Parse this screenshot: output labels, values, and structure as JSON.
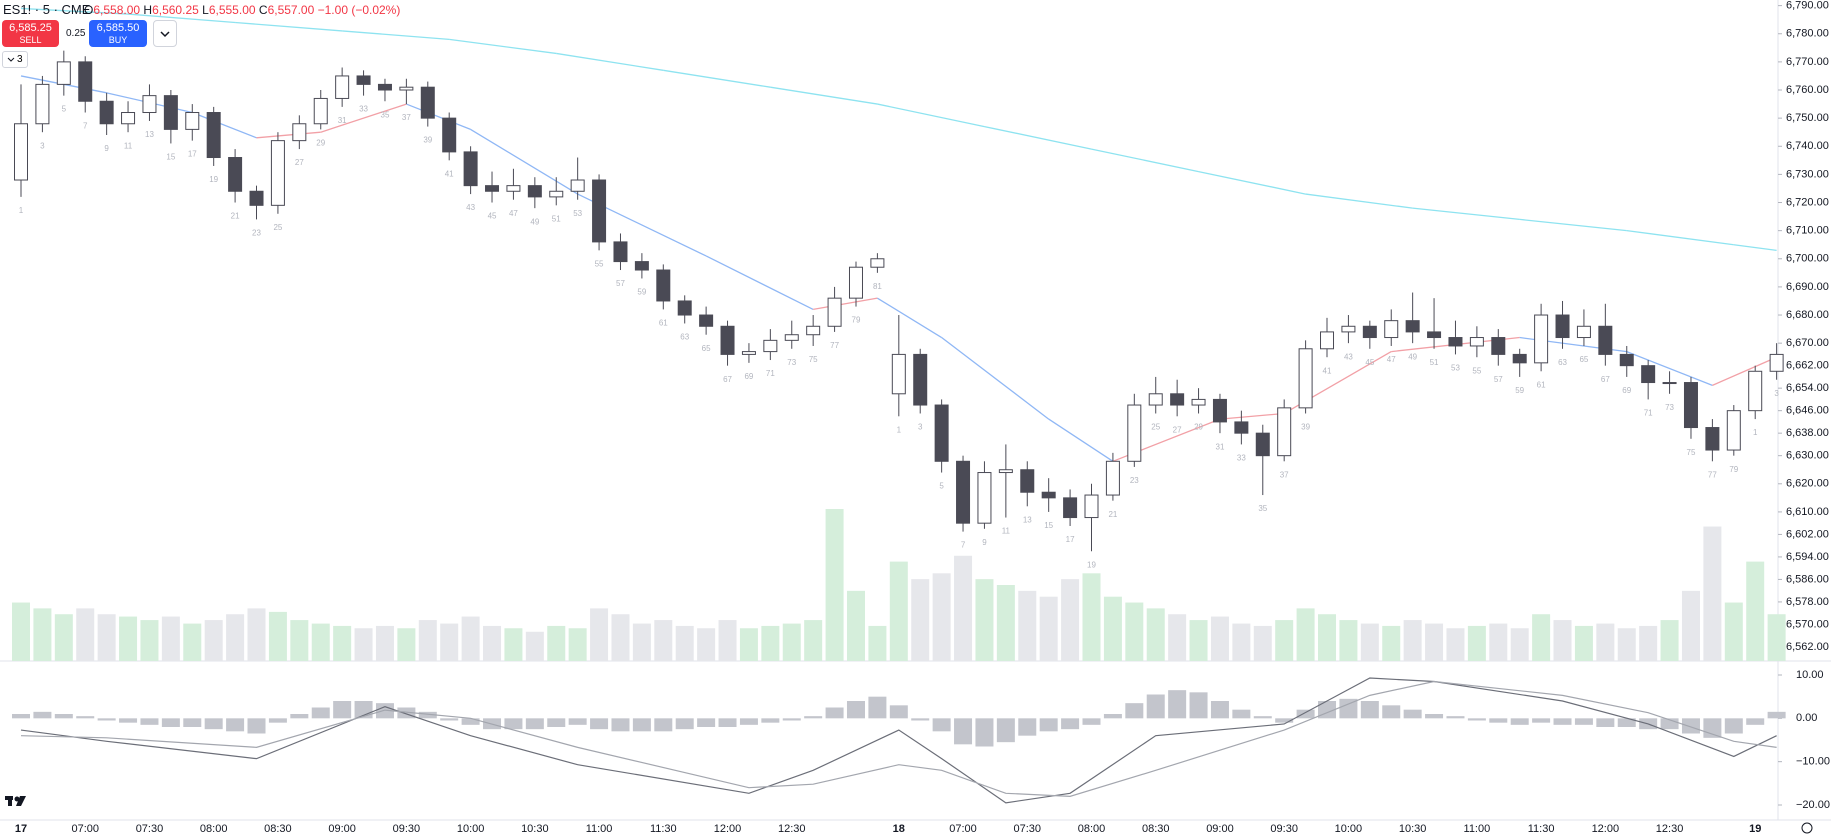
{
  "header": {
    "symbol": "ES1! · 5 · CME",
    "legend": [
      {
        "label": "O",
        "value": "6,558.00"
      },
      {
        "label": "H",
        "value": "6,560.25"
      },
      {
        "label": "L",
        "value": "6,555.00"
      },
      {
        "label": "C",
        "value": "6,557.00"
      }
    ],
    "change": "−1.00 (−0.02%)",
    "sell_price": "6,585.25",
    "sell_label": "SELL",
    "spread": "0.25",
    "buy_price": "6,585.50",
    "buy_label": "BUY",
    "indicator_count": "3"
  },
  "chart_data": {
    "type": "candlestick",
    "up_color": "#ffffff",
    "down_color": "#4a4a55",
    "ylim": [
      6557,
      6792
    ],
    "yticks": [
      {
        "value": 6790,
        "label": "6,790.00"
      },
      {
        "value": 6780,
        "label": "6,780.00"
      },
      {
        "value": 6770,
        "label": "6,770.00"
      },
      {
        "value": 6760,
        "label": "6,760.00"
      },
      {
        "value": 6750,
        "label": "6,750.00"
      },
      {
        "value": 6740,
        "label": "6,740.00"
      },
      {
        "value": 6730,
        "label": "6,730.00"
      },
      {
        "value": 6720,
        "label": "6,720.00"
      },
      {
        "value": 6710,
        "label": "6,710.00"
      },
      {
        "value": 6700,
        "label": "6,700.00"
      },
      {
        "value": 6690,
        "label": "6,690.00"
      },
      {
        "value": 6680,
        "label": "6,680.00"
      },
      {
        "value": 6670,
        "label": "6,670.00"
      },
      {
        "value": 6662,
        "label": "6,662.00"
      },
      {
        "value": 6654,
        "label": "6,654.00"
      },
      {
        "value": 6646,
        "label": "6,646.00"
      },
      {
        "value": 6638,
        "label": "6,638.00"
      },
      {
        "value": 6630,
        "label": "6,630.00"
      },
      {
        "value": 6620,
        "label": "6,620.00"
      },
      {
        "value": 6610,
        "label": "6,610.00"
      },
      {
        "value": 6602,
        "label": "6,602.00"
      },
      {
        "value": 6594,
        "label": "6,594.00"
      },
      {
        "value": 6586,
        "label": "6,586.00"
      },
      {
        "value": 6578,
        "label": "6,578.00"
      },
      {
        "value": 6570,
        "label": "6,570.00"
      },
      {
        "value": 6562,
        "label": "6,562.00"
      }
    ],
    "categories": [
      "17",
      null,
      null,
      "07:00",
      null,
      null,
      "07:30",
      null,
      null,
      "08:00",
      null,
      null,
      "08:30",
      null,
      null,
      "09:00",
      null,
      null,
      "09:30",
      null,
      null,
      "10:00",
      null,
      null,
      "10:30",
      null,
      null,
      "11:00",
      null,
      null,
      "11:30",
      null,
      null,
      "12:00",
      null,
      null,
      "12:30",
      null,
      null,
      null,
      null,
      "18",
      null,
      null,
      "07:00",
      null,
      null,
      "07:30",
      null,
      null,
      "08:00",
      null,
      null,
      "08:30",
      null,
      null,
      "09:00",
      null,
      null,
      "09:30",
      null,
      null,
      "10:00",
      null,
      null,
      "10:30",
      null,
      null,
      "11:00",
      null,
      null,
      "11:30",
      null,
      null,
      "12:00",
      null,
      null,
      "12:30",
      null,
      null,
      null,
      "19",
      null
    ],
    "ohlc": [
      [
        6728,
        6762,
        6722,
        6748
      ],
      [
        6748,
        6765,
        6745,
        6762
      ],
      [
        6762,
        6774,
        6758,
        6770
      ],
      [
        6770,
        6772,
        6752,
        6756
      ],
      [
        6756,
        6759,
        6744,
        6748
      ],
      [
        6748,
        6756,
        6745,
        6752
      ],
      [
        6752,
        6762,
        6749,
        6758
      ],
      [
        6758,
        6760,
        6741,
        6746
      ],
      [
        6746,
        6755,
        6742,
        6752
      ],
      [
        6752,
        6754,
        6733,
        6736
      ],
      [
        6736,
        6739,
        6720,
        6724
      ],
      [
        6724,
        6726,
        6714,
        6719
      ],
      [
        6719,
        6745,
        6716,
        6742
      ],
      [
        6742,
        6751,
        6739,
        6748
      ],
      [
        6748,
        6760,
        6746,
        6757
      ],
      [
        6757,
        6768,
        6754,
        6765
      ],
      [
        6765,
        6767,
        6758,
        6762
      ],
      [
        6762,
        6764,
        6756,
        6760
      ],
      [
        6760,
        6764,
        6755,
        6761
      ],
      [
        6761,
        6763,
        6747,
        6750
      ],
      [
        6750,
        6752,
        6735,
        6738
      ],
      [
        6738,
        6740,
        6723,
        6726
      ],
      [
        6726,
        6731,
        6720,
        6724
      ],
      [
        6724,
        6732,
        6721,
        6726
      ],
      [
        6726,
        6729,
        6718,
        6722
      ],
      [
        6722,
        6729,
        6719,
        6724
      ],
      [
        6724,
        6736,
        6721,
        6728
      ],
      [
        6728,
        6730,
        6703,
        6706
      ],
      [
        6706,
        6709,
        6696,
        6699
      ],
      [
        6699,
        6702,
        6693,
        6696
      ],
      [
        6696,
        6698,
        6682,
        6685
      ],
      [
        6685,
        6687,
        6677,
        6680
      ],
      [
        6680,
        6683,
        6673,
        6676
      ],
      [
        6676,
        6678,
        6662,
        6666
      ],
      [
        6666,
        6670,
        6663,
        6667
      ],
      [
        6667,
        6675,
        6664,
        6671
      ],
      [
        6671,
        6678,
        6668,
        6673
      ],
      [
        6673,
        6680,
        6669,
        6676
      ],
      [
        6676,
        6690,
        6674,
        6686
      ],
      [
        6686,
        6699,
        6683,
        6697
      ],
      [
        6697,
        6702,
        6695,
        6700
      ],
      [
        6652,
        6680,
        6644,
        6666
      ],
      [
        6666,
        6668,
        6645,
        6648
      ],
      [
        6648,
        6650,
        6624,
        6628
      ],
      [
        6628,
        6630,
        6603,
        6606
      ],
      [
        6606,
        6628,
        6604,
        6624
      ],
      [
        6624,
        6634,
        6608,
        6625
      ],
      [
        6625,
        6628,
        6612,
        6617
      ],
      [
        6617,
        6622,
        6610,
        6615
      ],
      [
        6615,
        6618,
        6605,
        6608
      ],
      [
        6608,
        6620,
        6596,
        6616
      ],
      [
        6616,
        6631,
        6614,
        6628
      ],
      [
        6628,
        6652,
        6626,
        6648
      ],
      [
        6648,
        6658,
        6645,
        6652
      ],
      [
        6652,
        6657,
        6644,
        6648
      ],
      [
        6648,
        6654,
        6645,
        6650
      ],
      [
        6650,
        6652,
        6638,
        6642
      ],
      [
        6642,
        6646,
        6634,
        6638
      ],
      [
        6638,
        6641,
        6616,
        6630
      ],
      [
        6630,
        6650,
        6628,
        6647
      ],
      [
        6647,
        6671,
        6645,
        6668
      ],
      [
        6668,
        6679,
        6665,
        6674
      ],
      [
        6674,
        6680,
        6670,
        6676
      ],
      [
        6676,
        6678,
        6668,
        6672
      ],
      [
        6672,
        6682,
        6669,
        6678
      ],
      [
        6678,
        6688,
        6670,
        6674
      ],
      [
        6674,
        6686,
        6668,
        6672
      ],
      [
        6672,
        6678,
        6666,
        6669
      ],
      [
        6669,
        6676,
        6665,
        6672
      ],
      [
        6672,
        6675,
        6662,
        6666
      ],
      [
        6666,
        6668,
        6658,
        6663
      ],
      [
        6663,
        6684,
        6660,
        6680
      ],
      [
        6680,
        6685,
        6668,
        6672
      ],
      [
        6672,
        6682,
        6669,
        6676
      ],
      [
        6676,
        6684,
        6662,
        6666
      ],
      [
        6666,
        6669,
        6658,
        6662
      ],
      [
        6662,
        6664,
        6650,
        6656
      ],
      [
        6656,
        6660,
        6652,
        6656
      ],
      [
        6656,
        6658,
        6636,
        6640
      ],
      [
        6640,
        6643,
        6628,
        6632
      ],
      [
        6632,
        6648,
        6630,
        6646
      ],
      [
        6646,
        6662,
        6643,
        6660
      ],
      [
        6660,
        6670,
        6657,
        6666
      ]
    ],
    "bar_numbers": [
      1,
      3,
      5,
      7,
      9,
      11,
      13,
      15,
      17,
      19,
      21,
      23,
      25,
      27,
      29,
      31,
      33,
      35,
      37,
      39,
      41,
      43,
      45,
      47,
      49,
      51,
      53,
      55,
      57,
      59,
      61,
      63,
      65,
      67,
      69,
      71,
      73,
      75,
      77,
      79,
      81,
      1,
      3,
      5,
      7,
      9,
      11,
      13,
      15,
      17,
      19,
      21,
      23,
      25,
      27,
      29,
      31,
      33,
      35,
      37,
      39,
      41,
      43,
      45,
      47,
      49,
      51,
      53,
      55,
      57,
      59,
      61,
      63,
      65,
      67,
      69,
      71,
      73,
      75,
      77,
      79,
      1,
      3
    ],
    "volume": {
      "up_color": "#d5eedb",
      "down_color": "#e6e7eb",
      "values": [
        50,
        45,
        40,
        45,
        40,
        38,
        35,
        38,
        32,
        35,
        40,
        45,
        42,
        35,
        32,
        30,
        28,
        30,
        28,
        35,
        32,
        38,
        30,
        28,
        25,
        30,
        28,
        45,
        40,
        32,
        35,
        30,
        28,
        35,
        28,
        30,
        32,
        35,
        130,
        60,
        30,
        85,
        70,
        75,
        90,
        70,
        65,
        60,
        55,
        70,
        75,
        55,
        50,
        45,
        40,
        35,
        38,
        32,
        30,
        35,
        45,
        40,
        35,
        32,
        30,
        35,
        32,
        28,
        30,
        32,
        28,
        40,
        35,
        30,
        32,
        28,
        30,
        35,
        60,
        115,
        50,
        85,
        40
      ]
    },
    "lines": [
      {
        "color": "#8ee3f0",
        "x": [
          0,
          5,
          10,
          15,
          20,
          25,
          30,
          35,
          40,
          45,
          50,
          55,
          60,
          65,
          70,
          75,
          80,
          82
        ],
        "values": [
          6789,
          6787,
          6784,
          6781,
          6778,
          6773,
          6767,
          6761,
          6755,
          6747,
          6739,
          6731,
          6723,
          6718,
          6714,
          6710,
          6705,
          6703
        ]
      },
      {
        "color": "#8fb7f5",
        "up_color": "#f2a0a6",
        "x": [
          0,
          4,
          8,
          11,
          14,
          18,
          21,
          26,
          32,
          37,
          40,
          43,
          48,
          51,
          56,
          59,
          64,
          70,
          75,
          79,
          82
        ],
        "values": [
          6765,
          6759,
          6752,
          6743,
          6745,
          6755,
          6746,
          6723,
          6701,
          6682,
          6686,
          6672,
          6643,
          6628,
          6643,
          6645,
          6667,
          6672,
          6667,
          6655,
          6665
        ]
      }
    ],
    "macd": {
      "ylim": [
        -23,
        13
      ],
      "yticks": [
        {
          "value": 10,
          "label": "10.00"
        },
        {
          "value": 0,
          "label": "0.00"
        },
        {
          "value": -10,
          "label": "−10.00"
        },
        {
          "value": -20,
          "label": "−20.00"
        }
      ],
      "hist_color": "#c3c5cc",
      "histogram": [
        1,
        1.5,
        1,
        0.5,
        -0.5,
        -1,
        -1.5,
        -2,
        -2,
        -2.5,
        -3,
        -3.5,
        -1,
        1,
        2.5,
        4,
        4,
        3.5,
        2.5,
        1.5,
        -0.5,
        -1.5,
        -2.5,
        -2.5,
        -2.5,
        -2,
        -1.5,
        -2.5,
        -3,
        -3,
        -3,
        -2.5,
        -2,
        -2,
        -1.5,
        -1,
        -0.5,
        0.5,
        2.5,
        4,
        5,
        3,
        -0.5,
        -3,
        -6,
        -6.5,
        -5.5,
        -4,
        -3,
        -2.5,
        -1.5,
        1,
        3.5,
        5.5,
        6.5,
        6,
        4,
        2,
        0.5,
        -1,
        2,
        4,
        4.5,
        4,
        3,
        2,
        1,
        0.5,
        -0.5,
        -1,
        -1.5,
        -1,
        -1.5,
        -1.5,
        -2,
        -2,
        -2.5,
        -2.5,
        -3.5,
        -4.5,
        -3.5,
        -1.5,
        1.5
      ],
      "lines": [
        {
          "color": "#6b6e78",
          "x": [
            0,
            4,
            11,
            17,
            21,
            26,
            34,
            37,
            41,
            43,
            46,
            49,
            53,
            59,
            63,
            66,
            72,
            76,
            80,
            82
          ],
          "values": [
            -2.7,
            -5.3,
            -9.3,
            2.7,
            -4,
            -10.7,
            -17.3,
            -12,
            -2.7,
            -9.3,
            -19.5,
            -17.3,
            -4,
            -1.3,
            9.3,
            8.5,
            4,
            -1.3,
            -8.8,
            -4
          ]
        },
        {
          "color": "#a3a6ae",
          "x": [
            0,
            4,
            11,
            17,
            21,
            26,
            34,
            37,
            41,
            43,
            46,
            49,
            53,
            59,
            63,
            66,
            72,
            76,
            80,
            82
          ],
          "values": [
            -4,
            -4.5,
            -6.7,
            1.9,
            0,
            -6.7,
            -16,
            -15.2,
            -10.7,
            -12,
            -17.3,
            -18,
            -12,
            -2.7,
            5.3,
            8.5,
            5.3,
            1.3,
            -5.3,
            -6.7
          ]
        }
      ]
    }
  }
}
